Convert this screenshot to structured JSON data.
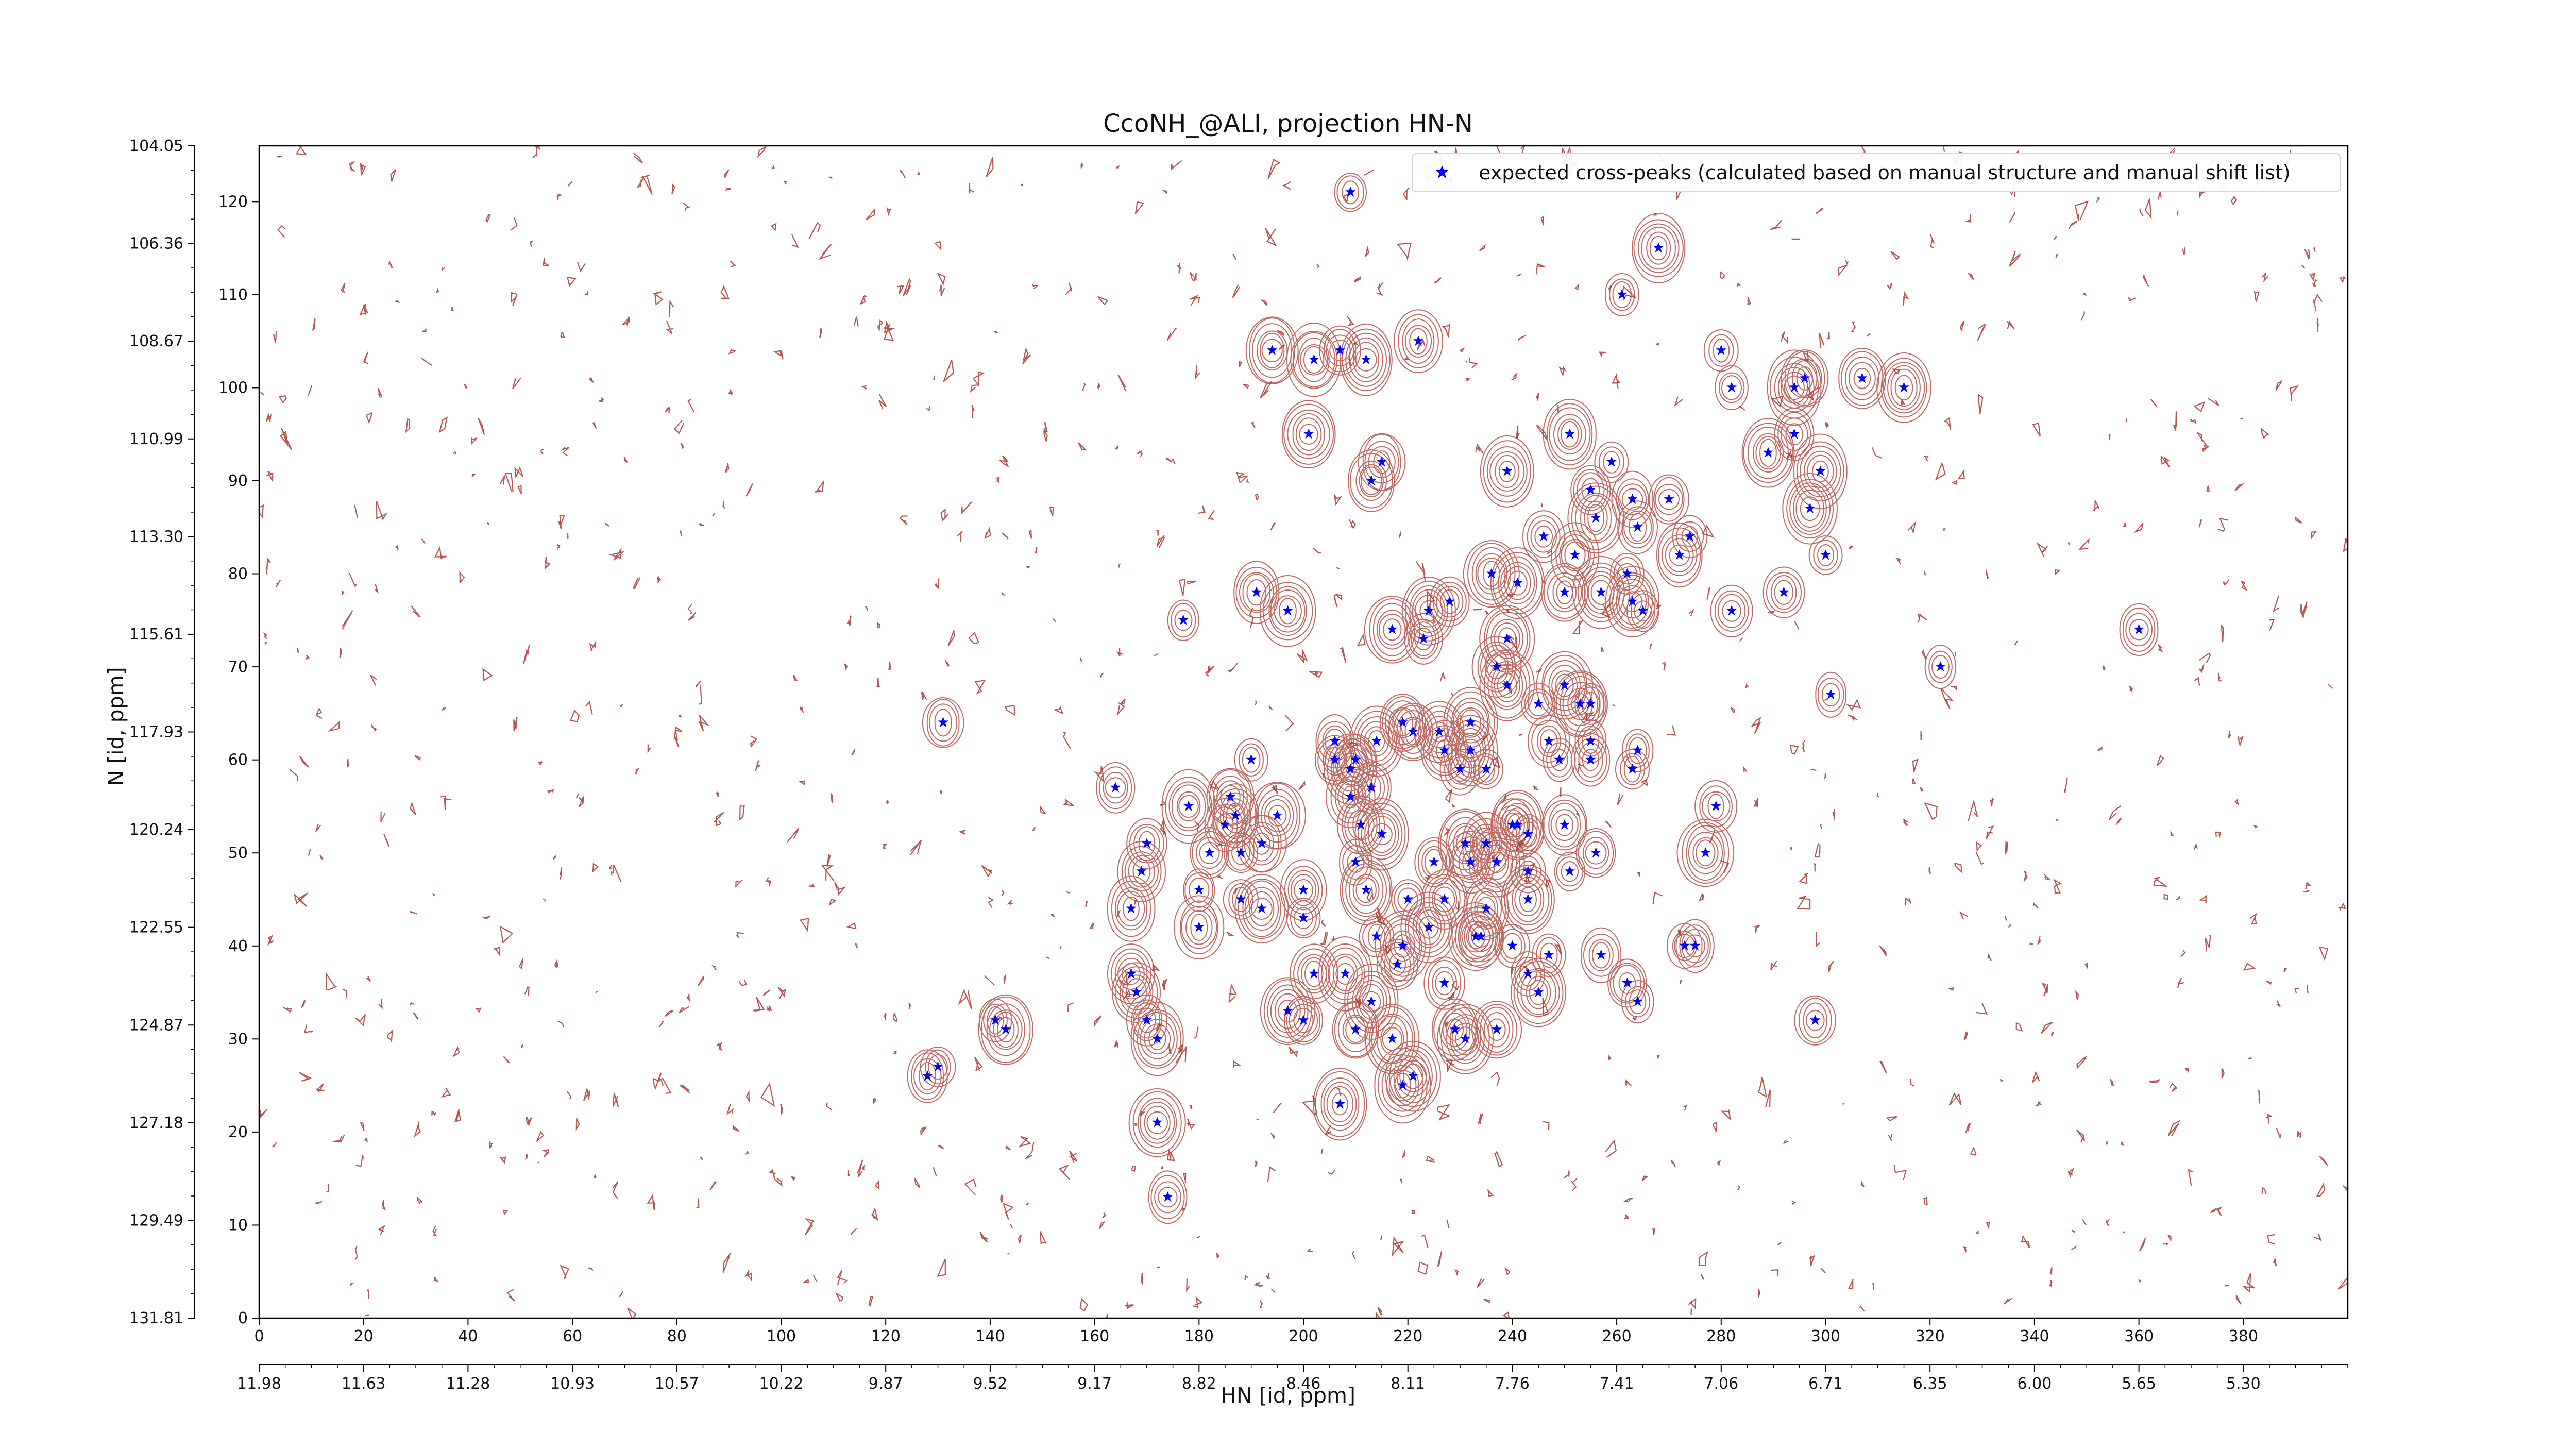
{
  "chart_data": {
    "type": "scatter",
    "title": "CcoNH_@ALI, projection HN-N",
    "xlabel": "HN [id, ppm]",
    "ylabel": "N [id, ppm]",
    "x_index_range": [
      0,
      400
    ],
    "y_index_range": [
      0,
      126
    ],
    "x_index_ticks": [
      "0",
      "20",
      "40",
      "60",
      "80",
      "100",
      "120",
      "140",
      "160",
      "180",
      "200",
      "220",
      "240",
      "260",
      "280",
      "300",
      "320",
      "340",
      "360",
      "380"
    ],
    "y_index_ticks": [
      "0",
      "10",
      "20",
      "30",
      "40",
      "50",
      "60",
      "70",
      "80",
      "90",
      "100",
      "110",
      "120"
    ],
    "x_ppm_ticks": [
      "11.98",
      "11.63",
      "11.28",
      "10.93",
      "10.57",
      "10.22",
      "9.87",
      "9.52",
      "9.17",
      "8.82",
      "8.46",
      "8.11",
      "7.76",
      "7.41",
      "7.06",
      "6.71",
      "6.35",
      "6.00",
      "5.65",
      "5.30"
    ],
    "y_ppm_ticks": [
      "131.81",
      "129.49",
      "127.18",
      "124.87",
      "122.55",
      "120.24",
      "117.93",
      "115.61",
      "113.30",
      "110.99",
      "108.67",
      "106.36",
      "104.05"
    ],
    "legend": {
      "label": "expected cross-peaks (calculated based on manual structure and manual shift list)",
      "position": "upper right"
    },
    "series": [
      {
        "name": "expected cross-peaks (calculated based on manual structure and manual shift list)",
        "color": "#0000ff",
        "marker": "star",
        "points": [
          [
            209,
            121
          ],
          [
            268,
            115
          ],
          [
            261,
            110
          ],
          [
            194,
            104
          ],
          [
            207,
            104
          ],
          [
            222,
            105
          ],
          [
            280,
            104
          ],
          [
            202,
            103
          ],
          [
            212,
            103
          ],
          [
            282,
            100
          ],
          [
            296,
            101
          ],
          [
            294,
            100
          ],
          [
            307,
            101
          ],
          [
            315,
            100
          ],
          [
            201,
            95
          ],
          [
            215,
            92
          ],
          [
            213,
            90
          ],
          [
            239,
            91
          ],
          [
            251,
            95
          ],
          [
            259,
            92
          ],
          [
            289,
            93
          ],
          [
            294,
            95
          ],
          [
            299,
            91
          ],
          [
            255,
            89
          ],
          [
            263,
            88
          ],
          [
            270,
            88
          ],
          [
            256,
            86
          ],
          [
            264,
            85
          ],
          [
            274,
            84
          ],
          [
            297,
            87
          ],
          [
            246,
            84
          ],
          [
            252,
            82
          ],
          [
            236,
            80
          ],
          [
            241,
            79
          ],
          [
            262,
            80
          ],
          [
            272,
            82
          ],
          [
            300,
            82
          ],
          [
            292,
            78
          ],
          [
            257,
            78
          ],
          [
            250,
            78
          ],
          [
            263,
            77
          ],
          [
            265,
            76
          ],
          [
            282,
            76
          ],
          [
            224,
            76
          ],
          [
            228,
            77
          ],
          [
            217,
            74
          ],
          [
            223,
            73
          ],
          [
            239,
            73
          ],
          [
            197,
            76
          ],
          [
            177,
            75
          ],
          [
            191,
            78
          ],
          [
            360,
            74
          ],
          [
            322,
            70
          ],
          [
            237,
            70
          ],
          [
            239,
            68
          ],
          [
            250,
            68
          ],
          [
            253,
            66
          ],
          [
            245,
            66
          ],
          [
            255,
            66
          ],
          [
            232,
            64
          ],
          [
            219,
            64
          ],
          [
            221,
            63
          ],
          [
            226,
            63
          ],
          [
            206,
            62
          ],
          [
            214,
            62
          ],
          [
            227,
            61
          ],
          [
            232,
            61
          ],
          [
            230,
            59
          ],
          [
            255,
            62
          ],
          [
            264,
            61
          ],
          [
            247,
            62
          ],
          [
            249,
            60
          ],
          [
            255,
            60
          ],
          [
            210,
            60
          ],
          [
            235,
            59
          ],
          [
            213,
            57
          ],
          [
            209,
            56
          ],
          [
            263,
            59
          ],
          [
            206,
            60
          ],
          [
            190,
            60
          ],
          [
            178,
            55
          ],
          [
            164,
            57
          ],
          [
            185,
            53
          ],
          [
            186,
            56
          ],
          [
            187,
            54
          ],
          [
            195,
            54
          ],
          [
            211,
            53
          ],
          [
            215,
            52
          ],
          [
            240,
            53
          ],
          [
            243,
            52
          ],
          [
            250,
            53
          ],
          [
            279,
            55
          ],
          [
            170,
            51
          ],
          [
            182,
            50
          ],
          [
            188,
            50
          ],
          [
            192,
            51
          ],
          [
            231,
            51
          ],
          [
            235,
            51
          ],
          [
            241,
            53
          ],
          [
            210,
            49
          ],
          [
            225,
            49
          ],
          [
            232,
            49
          ],
          [
            237,
            49
          ],
          [
            243,
            48
          ],
          [
            251,
            48
          ],
          [
            256,
            50
          ],
          [
            277,
            50
          ],
          [
            169,
            48
          ],
          [
            180,
            46
          ],
          [
            188,
            45
          ],
          [
            200,
            46
          ],
          [
            212,
            46
          ],
          [
            220,
            45
          ],
          [
            227,
            45
          ],
          [
            235,
            44
          ],
          [
            243,
            45
          ],
          [
            167,
            44
          ],
          [
            192,
            44
          ],
          [
            200,
            43
          ],
          [
            214,
            41
          ],
          [
            219,
            40
          ],
          [
            224,
            42
          ],
          [
            234,
            41
          ],
          [
            240,
            40
          ],
          [
            247,
            39
          ],
          [
            257,
            39
          ],
          [
            275,
            40
          ],
          [
            218,
            38
          ],
          [
            202,
            37
          ],
          [
            208,
            37
          ],
          [
            227,
            36
          ],
          [
            243,
            37
          ],
          [
            273,
            40
          ],
          [
            167,
            37
          ],
          [
            168,
            35
          ],
          [
            213,
            34
          ],
          [
            197,
            33
          ],
          [
            200,
            32
          ],
          [
            210,
            31
          ],
          [
            141,
            32
          ],
          [
            143,
            31
          ],
          [
            170,
            32
          ],
          [
            172,
            30
          ],
          [
            229,
            31
          ],
          [
            237,
            31
          ],
          [
            217,
            30
          ],
          [
            231,
            30
          ],
          [
            128,
            26
          ],
          [
            130,
            27
          ],
          [
            221,
            26
          ],
          [
            219,
            25
          ],
          [
            262,
            36
          ],
          [
            298,
            32
          ],
          [
            207,
            23
          ],
          [
            172,
            21
          ],
          [
            174,
            13
          ],
          [
            264,
            34
          ],
          [
            233,
            41
          ],
          [
            180,
            42
          ],
          [
            245,
            35
          ],
          [
            131,
            64
          ],
          [
            301,
            67
          ],
          [
            209,
            59
          ]
        ]
      }
    ]
  }
}
